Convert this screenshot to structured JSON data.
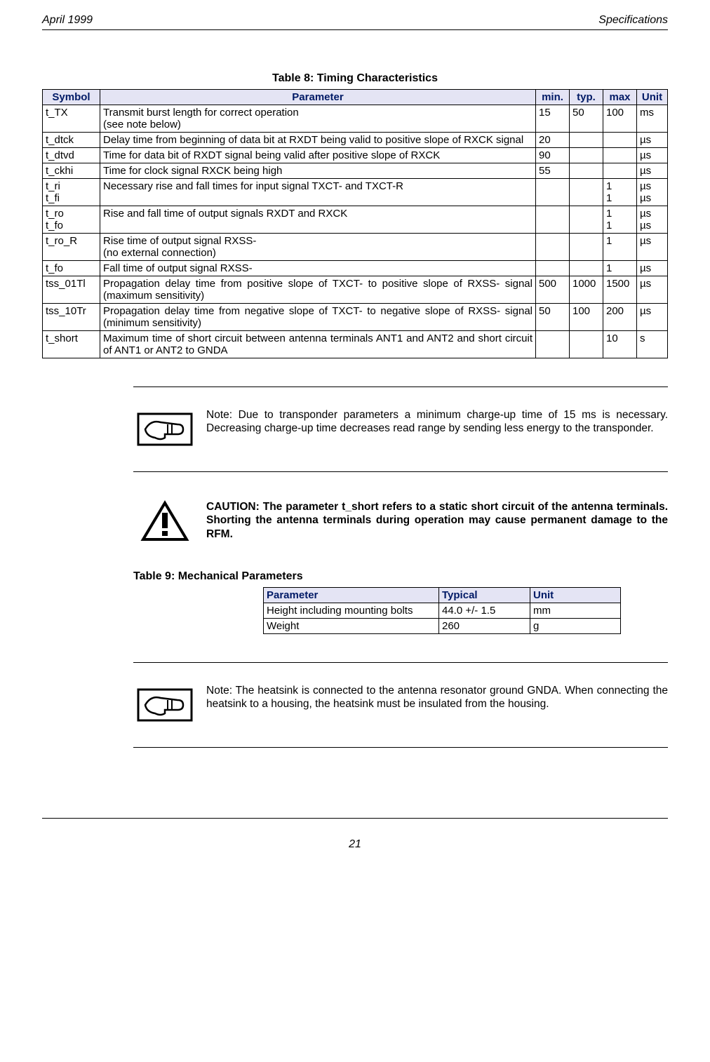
{
  "header": {
    "left": "April 1999",
    "right": "Specifications"
  },
  "table8": {
    "caption": "Table 8: Timing Characteristics",
    "columns": [
      "Symbol",
      "Parameter",
      "min.",
      "typ.",
      "max",
      "Unit"
    ],
    "rows": [
      {
        "symbol": "t_TX",
        "param": "Transmit burst length for correct operation\n(see note below)",
        "min": "15",
        "typ": "50",
        "max": "100",
        "unit": "ms"
      },
      {
        "symbol": "t_dtck",
        "param": "Delay time from beginning of data bit at RXDT being valid to positive slope of RXCK signal",
        "min": "20",
        "typ": "",
        "max": "",
        "unit": "µs"
      },
      {
        "symbol": "t_dtvd",
        "param": "Time for data bit of RXDT signal being valid after positive slope of RXCK",
        "min": "90",
        "typ": "",
        "max": "",
        "unit": "µs"
      },
      {
        "symbol": "t_ckhi",
        "param": "Time for clock signal RXCK being high",
        "min": "55",
        "typ": "",
        "max": "",
        "unit": "µs"
      },
      {
        "symbol": "t_ri\nt_fi",
        "param": "Necessary rise and fall times for input signal TXCT- and TXCT-R",
        "min": "",
        "typ": "",
        "max": "1\n1",
        "unit": "µs\nµs"
      },
      {
        "symbol": "t_ro\nt_fo",
        "param": "Rise and fall time of output signals RXDT and RXCK",
        "min": "",
        "typ": "",
        "max": "1\n1",
        "unit": "µs\nµs"
      },
      {
        "symbol": "t_ro_R",
        "param": "Rise time of output signal RXSS-\n(no external connection)",
        "min": "",
        "typ": "",
        "max": "1",
        "unit": "µs"
      },
      {
        "symbol": "t_fo",
        "param": "Fall time of output signal RXSS-",
        "min": "",
        "typ": "",
        "max": "1",
        "unit": "µs"
      },
      {
        "symbol": "tss_01Tl",
        "param": "Propagation delay time from positive slope of TXCT- to positive slope of RXSS- signal (maximum sensitivity)",
        "min": "500",
        "typ": "1000",
        "max": "1500",
        "unit": "µs"
      },
      {
        "symbol": "tss_10Tr",
        "param": "Propagation delay time from negative slope of TXCT- to negative slope of RXSS- signal (minimum sensitivity)",
        "min": "50",
        "typ": "100",
        "max": "200",
        "unit": "µs"
      },
      {
        "symbol": "t_short",
        "param": "Maximum time of short circuit between antenna terminals ANT1 and ANT2 and short circuit of ANT1 or ANT2 to GNDA",
        "min": "",
        "typ": "",
        "max": "10",
        "unit": "s"
      }
    ]
  },
  "note1": "Note: Due to transponder parameters a minimum charge-up time of 15 ms is necessary. Decreasing charge-up time decreases read range by sending less energy to the transponder.",
  "caution": "CAUTION: The parameter t_short refers to a static short circuit of the antenna terminals. Shorting the antenna terminals during operation may cause permanent damage to the RFM.",
  "table9": {
    "caption": "Table 9: Mechanical Parameters",
    "columns": [
      "Parameter",
      "Typical",
      "Unit"
    ],
    "rows": [
      {
        "param": "Height including mounting bolts",
        "typ": "44.0 +/- 1.5",
        "unit": "mm"
      },
      {
        "param": "Weight",
        "typ": "260",
        "unit": "g"
      }
    ]
  },
  "note2": "Note: The heatsink is connected to the antenna resonator ground GNDA. When connecting the heatsink to a housing, the heatsink must be insulated from the housing.",
  "pageNumber": "21"
}
